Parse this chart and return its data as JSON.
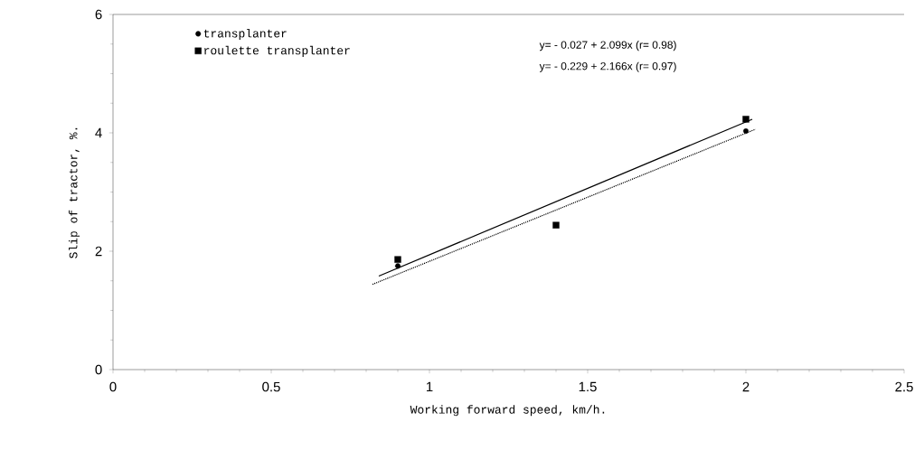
{
  "chart_data": {
    "type": "scatter",
    "xlabel": "Working forward speed, km/h.",
    "ylabel": "Slip of tractor, %.",
    "xlim": [
      0,
      2.5
    ],
    "ylim": [
      0,
      6
    ],
    "xticks": [
      0,
      0.5,
      1,
      1.5,
      2,
      2.5
    ],
    "yticks": [
      0,
      2,
      4,
      6
    ],
    "legend": "top left",
    "series": [
      {
        "name": "transplanter",
        "color": "#000000",
        "marker": "circle",
        "x": [
          0.9,
          1.4,
          2.0
        ],
        "values": [
          1.75,
          null,
          4.03
        ]
      },
      {
        "name": "roulette transplanter",
        "color": "#000000",
        "marker": "square",
        "x": [
          0.9,
          1.4,
          2.0
        ],
        "values": [
          1.86,
          2.44,
          4.23
        ]
      },
      {
        "type": "line",
        "color": "#000000",
        "line_style": "solid",
        "x": [
          0.84,
          2.02
        ],
        "values": [
          1.58,
          4.23
        ]
      },
      {
        "type": "line",
        "color": "#000000",
        "line_style": "dotted",
        "x": [
          0.82,
          2.03
        ],
        "values": [
          1.44,
          4.06
        ]
      }
    ],
    "annotations": [
      "y= - 0.027 + 2.099x  (r= 0.98)",
      "y= - 0.229 + 2.166x  (r= 0.97)"
    ]
  }
}
